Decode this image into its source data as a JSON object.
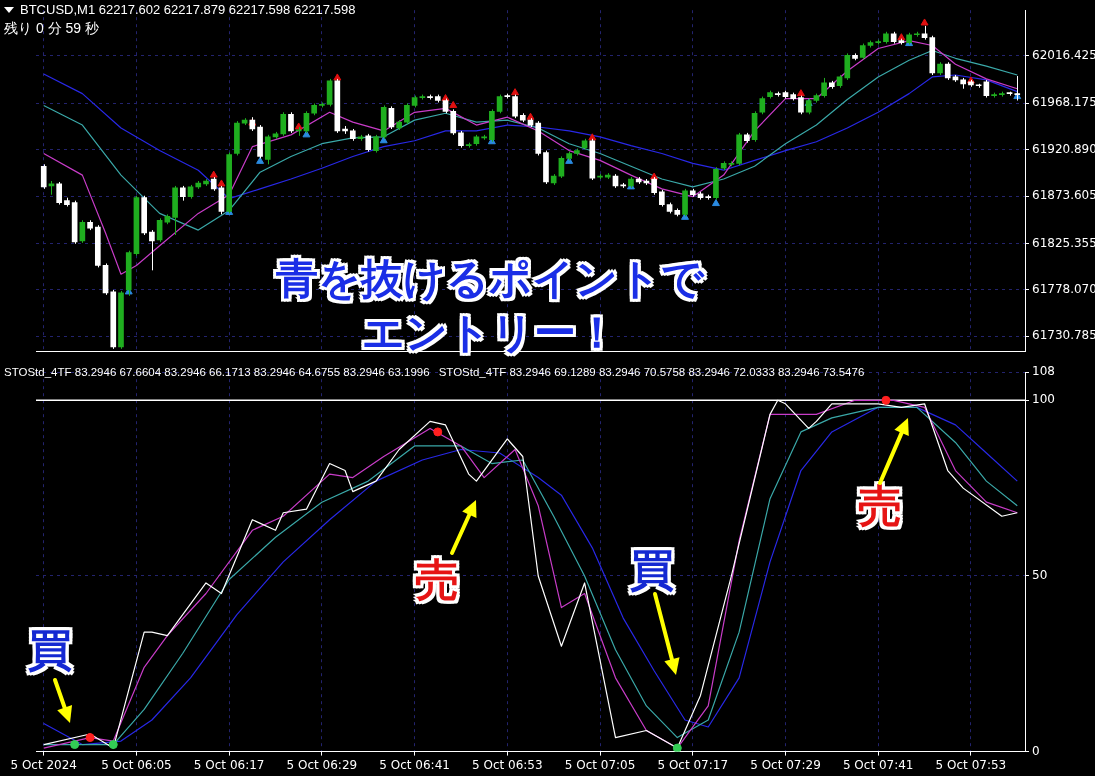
{
  "chart_data": [
    {
      "type": "candlestick",
      "title": "BTCUSD,M1  62217.602 62217.879 62217.598 62217.598",
      "subtitle": "残り 0 分 59 秒",
      "x": [
        "2024-10-05T05:53",
        "2024-10-05T05:54",
        "2024-10-05T05:55",
        "2024-10-05T05:56",
        "2024-10-05T05:57",
        "2024-10-05T05:58",
        "2024-10-05T05:59",
        "2024-10-05T06:00",
        "2024-10-05T06:01",
        "2024-10-05T06:02",
        "2024-10-05T06:03",
        "2024-10-05T06:04",
        "2024-10-05T06:05",
        "2024-10-05T06:06",
        "2024-10-05T06:07",
        "2024-10-05T06:08",
        "2024-10-05T06:09",
        "2024-10-05T06:10",
        "2024-10-05T06:11",
        "2024-10-05T06:12",
        "2024-10-05T06:13",
        "2024-10-05T06:14",
        "2024-10-05T06:15",
        "2024-10-05T06:16",
        "2024-10-05T06:17",
        "2024-10-05T06:18",
        "2024-10-05T06:19",
        "2024-10-05T06:20",
        "2024-10-05T06:21",
        "2024-10-05T06:22",
        "2024-10-05T06:23",
        "2024-10-05T06:24",
        "2024-10-05T06:25",
        "2024-10-05T06:26",
        "2024-10-05T06:27",
        "2024-10-05T06:28",
        "2024-10-05T06:29",
        "2024-10-05T06:30",
        "2024-10-05T06:31",
        "2024-10-05T06:32",
        "2024-10-05T06:33",
        "2024-10-05T06:34",
        "2024-10-05T06:35",
        "2024-10-05T06:36",
        "2024-10-05T06:37",
        "2024-10-05T06:38",
        "2024-10-05T06:39",
        "2024-10-05T06:40",
        "2024-10-05T06:41",
        "2024-10-05T06:42",
        "2024-10-05T06:43",
        "2024-10-05T06:44",
        "2024-10-05T06:45",
        "2024-10-05T06:46",
        "2024-10-05T06:47",
        "2024-10-05T06:48",
        "2024-10-05T06:49",
        "2024-10-05T06:50",
        "2024-10-05T06:51",
        "2024-10-05T06:52",
        "2024-10-05T06:53",
        "2024-10-05T06:54",
        "2024-10-05T06:55",
        "2024-10-05T06:56",
        "2024-10-05T06:57",
        "2024-10-05T06:58",
        "2024-10-05T06:59",
        "2024-10-05T07:00",
        "2024-10-05T07:01",
        "2024-10-05T07:02",
        "2024-10-05T07:03",
        "2024-10-05T07:04",
        "2024-10-05T07:05",
        "2024-10-05T07:06",
        "2024-10-05T07:07",
        "2024-10-05T07:08",
        "2024-10-05T07:09",
        "2024-10-05T07:10",
        "2024-10-05T07:11",
        "2024-10-05T07:12",
        "2024-10-05T07:13",
        "2024-10-05T07:14",
        "2024-10-05T07:15",
        "2024-10-05T07:16",
        "2024-10-05T07:17",
        "2024-10-05T07:18",
        "2024-10-05T07:19",
        "2024-10-05T07:20",
        "2024-10-05T07:21",
        "2024-10-05T07:22",
        "2024-10-05T07:23",
        "2024-10-05T07:24",
        "2024-10-05T07:25",
        "2024-10-05T07:26",
        "2024-10-05T07:27",
        "2024-10-05T07:28",
        "2024-10-05T07:29",
        "2024-10-05T07:30",
        "2024-10-05T07:31",
        "2024-10-05T07:32",
        "2024-10-05T07:33",
        "2024-10-05T07:34",
        "2024-10-05T07:35",
        "2024-10-05T07:36",
        "2024-10-05T07:37",
        "2024-10-05T07:38",
        "2024-10-05T07:39",
        "2024-10-05T07:40",
        "2024-10-05T07:41",
        "2024-10-05T07:42",
        "2024-10-05T07:43",
        "2024-10-05T07:44",
        "2024-10-05T07:45",
        "2024-10-05T07:46",
        "2024-10-05T07:47",
        "2024-10-05T07:48",
        "2024-10-05T07:49",
        "2024-10-05T07:50",
        "2024-10-05T07:51",
        "2024-10-05T07:52",
        "2024-10-05T07:53",
        "2024-10-05T07:54",
        "2024-10-05T07:55",
        "2024-10-05T07:56",
        "2024-10-05T07:57",
        "2024-10-05T07:58",
        "2024-10-05T07:59"
      ],
      "ohlc": [
        [
          61904,
          61906,
          61881,
          61883
        ],
        [
          61884,
          61889,
          61875,
          61886
        ],
        [
          61886,
          61888,
          61865,
          61867
        ],
        [
          61869,
          61872,
          61863,
          61865
        ],
        [
          61867,
          61869,
          61825,
          61827
        ],
        [
          61828,
          61849,
          61826,
          61847
        ],
        [
          61847,
          61849,
          61839,
          61841
        ],
        [
          61842,
          61844,
          61801,
          61803
        ],
        [
          61803,
          61805,
          61773,
          61775
        ],
        [
          61776,
          61778,
          61718,
          61720
        ],
        [
          61720,
          61777,
          61718,
          61775
        ],
        [
          61778,
          61818,
          61772,
          61816
        ],
        [
          61815,
          61874,
          61813,
          61872
        ],
        [
          61872,
          61874,
          61834,
          61836
        ],
        [
          61837,
          61839,
          61798,
          61828
        ],
        [
          61829,
          61851,
          61827,
          61849
        ],
        [
          61847,
          61855,
          61845,
          61853
        ],
        [
          61852,
          61884,
          61834,
          61882
        ],
        [
          61882,
          61884,
          61869,
          61873
        ],
        [
          61873,
          61885,
          61871,
          61883
        ],
        [
          61883,
          61889,
          61881,
          61887
        ],
        [
          61886,
          61891,
          61884,
          61889
        ],
        [
          61891,
          61893,
          61879,
          61881
        ],
        [
          61882,
          61884,
          61855,
          61858
        ],
        [
          61858,
          61918,
          61856,
          61916
        ],
        [
          61917,
          61950,
          61915,
          61948
        ],
        [
          61948,
          61953,
          61946,
          61951
        ],
        [
          61951,
          61954,
          61940,
          61942
        ],
        [
          61944,
          61946,
          61912,
          61914
        ],
        [
          61911,
          61936,
          61906,
          61934
        ],
        [
          61934,
          61939,
          61932,
          61937
        ],
        [
          61937,
          61959,
          61935,
          61957
        ],
        [
          61957,
          61959,
          61938,
          61940
        ],
        [
          61940,
          61944,
          61935,
          61941
        ],
        [
          61940,
          61960,
          61938,
          61958
        ],
        [
          61958,
          61968,
          61956,
          61966
        ],
        [
          61966,
          61969,
          61964,
          61967
        ],
        [
          61967,
          61993,
          61965,
          61991
        ],
        [
          61991,
          61993,
          61938,
          61940
        ],
        [
          61942,
          61945,
          61937,
          61940
        ],
        [
          61940,
          61942,
          61930,
          61932
        ],
        [
          61932,
          61936,
          61930,
          61934
        ],
        [
          61935,
          61937,
          61919,
          61921
        ],
        [
          61920,
          61936,
          61918,
          61934
        ],
        [
          61934,
          61966,
          61932,
          61964
        ],
        [
          61963,
          61965,
          61942,
          61944
        ],
        [
          61943,
          61951,
          61941,
          61949
        ],
        [
          61949,
          61968,
          61947,
          61966
        ],
        [
          61966,
          61976,
          61964,
          61974
        ],
        [
          61974,
          61977,
          61972,
          61975
        ],
        [
          61975,
          61977,
          61972,
          61974
        ],
        [
          61975,
          61977,
          61969,
          61971
        ],
        [
          61971,
          61973,
          61958,
          61960
        ],
        [
          61960,
          61962,
          61936,
          61938
        ],
        [
          61938,
          61940,
          61923,
          61925
        ],
        [
          61925,
          61928,
          61923,
          61926
        ],
        [
          61927,
          61936,
          61925,
          61934
        ],
        [
          61933,
          61936,
          61931,
          61934
        ],
        [
          61931,
          61962,
          61929,
          61960
        ],
        [
          61960,
          61977,
          61958,
          61975
        ],
        [
          61976,
          61978,
          61973,
          61975
        ],
        [
          61975,
          61977,
          61953,
          61955
        ],
        [
          61956,
          61958,
          61949,
          61951
        ],
        [
          61951,
          61953,
          61944,
          61946
        ],
        [
          61948,
          61950,
          61915,
          61917
        ],
        [
          61918,
          61920,
          61886,
          61888
        ],
        [
          61887,
          61896,
          61885,
          61894
        ],
        [
          61894,
          61914,
          61892,
          61912
        ],
        [
          61912,
          61919,
          61910,
          61917
        ],
        [
          61917,
          61922,
          61915,
          61920
        ],
        [
          61923,
          61932,
          61921,
          61930
        ],
        [
          61930,
          61932,
          61890,
          61892
        ],
        [
          61893,
          61896,
          61891,
          61894
        ],
        [
          61893,
          61897,
          61891,
          61895
        ],
        [
          61894,
          61896,
          61882,
          61884
        ],
        [
          61885,
          61887,
          61882,
          61884
        ],
        [
          61884,
          61893,
          61882,
          61891
        ],
        [
          61891,
          61893,
          61886,
          61888
        ],
        [
          61889,
          61891,
          61885,
          61887
        ],
        [
          61891,
          61893,
          61875,
          61877
        ],
        [
          61878,
          61880,
          61863,
          61865
        ],
        [
          61865,
          61867,
          61856,
          61858
        ],
        [
          61859,
          61861,
          61853,
          61855
        ],
        [
          61855,
          61881,
          61853,
          61879
        ],
        [
          61879,
          61881,
          61873,
          61875
        ],
        [
          61876,
          61878,
          61870,
          61872
        ],
        [
          61873,
          61875,
          61870,
          61872
        ],
        [
          61872,
          61903,
          61870,
          61901
        ],
        [
          61902,
          61909,
          61900,
          61907
        ],
        [
          61906,
          61909,
          61904,
          61907
        ],
        [
          61907,
          61938,
          61905,
          61936
        ],
        [
          61936,
          61938,
          61928,
          61930
        ],
        [
          61931,
          61960,
          61929,
          61958
        ],
        [
          61959,
          61975,
          61957,
          61973
        ],
        [
          61975,
          61981,
          61973,
          61979
        ],
        [
          61978,
          61980,
          61975,
          61977
        ],
        [
          61979,
          61981,
          61973,
          61975
        ],
        [
          61977,
          61979,
          61971,
          61973
        ],
        [
          61974,
          61976,
          61957,
          61959
        ],
        [
          61959,
          61973,
          61957,
          61971
        ],
        [
          61971,
          61978,
          61969,
          61976
        ],
        [
          61976,
          61994,
          61974,
          61989
        ],
        [
          61989,
          61991,
          61983,
          61985
        ],
        [
          61986,
          61997,
          61984,
          61995
        ],
        [
          61994,
          62019,
          61992,
          62017
        ],
        [
          62017,
          62019,
          62012,
          62014
        ],
        [
          62015,
          62029,
          62013,
          62027
        ],
        [
          62027,
          62032,
          62025,
          62030
        ],
        [
          62030,
          62033,
          62028,
          62031
        ],
        [
          62031,
          62041,
          62029,
          62039
        ],
        [
          62039,
          62041,
          62029,
          62031
        ],
        [
          62032,
          62034,
          62028,
          62030
        ],
        [
          62030,
          62040,
          62028,
          62038
        ],
        [
          62038,
          62041,
          62036,
          62039
        ],
        [
          62039,
          62047,
          62033,
          62035
        ],
        [
          62035,
          62037,
          61997,
          61999
        ],
        [
          61999,
          62010,
          61997,
          62008
        ],
        [
          62008,
          62010,
          61992,
          61994
        ],
        [
          61995,
          61997,
          61990,
          61992
        ],
        [
          61992,
          61994,
          61983,
          61988
        ],
        [
          61990,
          61992,
          61985,
          61987
        ],
        [
          61986,
          61988,
          61984,
          61986
        ],
        [
          61990,
          61992,
          61974,
          61976
        ],
        [
          61976,
          61979,
          61974,
          61977
        ],
        [
          61977,
          61980,
          61975,
          61978
        ],
        [
          61978,
          61980,
          61976,
          61978
        ],
        [
          61978,
          61996,
          61971,
          61977
        ]
      ],
      "colors": [
        "#ffffff",
        "#1fae1f",
        "#ffffff",
        "#ffffff",
        "#ffffff",
        "#1fae1f",
        "#ffffff",
        "#ffffff",
        "#ffffff",
        "#ffffff",
        "#1fae1f",
        "#1fae1f",
        "#1fae1f",
        "#ffffff",
        "#ffffff",
        "#1fae1f",
        "#1fae1f",
        "#1fae1f",
        "#ffffff",
        "#1fae1f",
        "#1fae1f",
        "#1fae1f",
        "#ffffff",
        "#ffffff",
        "#1fae1f",
        "#1fae1f",
        "#1fae1f",
        "#ffffff",
        "#ffffff",
        "#1fae1f",
        "#1fae1f",
        "#1fae1f",
        "#ffffff",
        "#1fae1f",
        "#1fae1f",
        "#1fae1f",
        "#1fae1f",
        "#1fae1f",
        "#ffffff",
        "#ffffff",
        "#ffffff",
        "#1fae1f",
        "#ffffff",
        "#1fae1f",
        "#1fae1f",
        "#ffffff",
        "#1fae1f",
        "#1fae1f",
        "#1fae1f",
        "#1fae1f",
        "#ffffff",
        "#ffffff",
        "#ffffff",
        "#ffffff",
        "#ffffff",
        "#1fae1f",
        "#1fae1f",
        "#1fae1f",
        "#1fae1f",
        "#1fae1f",
        "#ffffff",
        "#ffffff",
        "#ffffff",
        "#ffffff",
        "#ffffff",
        "#ffffff",
        "#1fae1f",
        "#1fae1f",
        "#1fae1f",
        "#1fae1f",
        "#1fae1f",
        "#ffffff",
        "#1fae1f",
        "#1fae1f",
        "#ffffff",
        "#ffffff",
        "#1fae1f",
        "#ffffff",
        "#ffffff",
        "#ffffff",
        "#ffffff",
        "#ffffff",
        "#ffffff",
        "#1fae1f",
        "#ffffff",
        "#ffffff",
        "#ffffff",
        "#1fae1f",
        "#1fae1f",
        "#1fae1f",
        "#1fae1f",
        "#ffffff",
        "#1fae1f",
        "#1fae1f",
        "#1fae1f",
        "#ffffff",
        "#ffffff",
        "#ffffff",
        "#ffffff",
        "#1fae1f",
        "#1fae1f",
        "#1fae1f",
        "#ffffff",
        "#1fae1f",
        "#1fae1f",
        "#ffffff",
        "#1fae1f",
        "#1fae1f",
        "#1fae1f",
        "#1fae1f",
        "#ffffff",
        "#ffffff",
        "#1fae1f",
        "#1fae1f",
        "#ffffff",
        "#ffffff",
        "#1fae1f",
        "#ffffff",
        "#ffffff",
        "#ffffff",
        "#ffffff",
        "#ffffff",
        "#ffffff",
        "#1fae1f",
        "#1fae1f",
        "#ffffff",
        "#ffffff"
      ],
      "series": [
        {
          "type": "line",
          "color": "#c83cc8",
          "x": [
            "2024-10-05T05:53",
            "2024-10-05T05:58",
            "2024-10-05T06:01",
            "2024-10-05T06:03",
            "2024-10-05T06:05",
            "2024-10-05T06:08",
            "2024-10-05T06:13",
            "2024-10-05T06:17",
            "2024-10-05T06:20",
            "2024-10-05T06:25",
            "2024-10-05T06:30",
            "2024-10-05T06:33",
            "2024-10-05T06:37",
            "2024-10-05T06:41",
            "2024-10-05T06:45",
            "2024-10-05T06:49",
            "2024-10-05T06:53",
            "2024-10-05T06:57",
            "2024-10-05T07:01",
            "2024-10-05T07:05",
            "2024-10-05T07:09",
            "2024-10-05T07:13",
            "2024-10-05T07:17",
            "2024-10-05T07:21",
            "2024-10-05T07:25",
            "2024-10-05T07:29",
            "2024-10-05T07:33",
            "2024-10-05T07:37",
            "2024-10-05T07:41",
            "2024-10-05T07:45",
            "2024-10-05T07:48",
            "2024-10-05T07:51",
            "2024-10-05T07:55",
            "2024-10-05T07:59"
          ],
          "values": [
            61917,
            61895,
            61836,
            61794,
            61803,
            61823,
            61856,
            61875,
            61924,
            61936,
            61959,
            61949,
            61940,
            61959,
            61963,
            61946,
            61954,
            61940,
            61920,
            61910,
            61895,
            61881,
            61873,
            61895,
            61940,
            61973,
            61973,
            62001,
            62024,
            62032,
            62027,
            62008,
            61993,
            61983
          ]
        },
        {
          "type": "line",
          "color": "#3aa8a8",
          "x": [
            "2024-10-05T05:53",
            "2024-10-05T05:58",
            "2024-10-05T06:03",
            "2024-10-05T06:08",
            "2024-10-05T06:13",
            "2024-10-05T06:17",
            "2024-10-05T06:21",
            "2024-10-05T06:25",
            "2024-10-05T06:29",
            "2024-10-05T06:33",
            "2024-10-05T06:37",
            "2024-10-05T06:41",
            "2024-10-05T06:45",
            "2024-10-05T06:49",
            "2024-10-05T06:53",
            "2024-10-05T06:57",
            "2024-10-05T07:01",
            "2024-10-05T07:05",
            "2024-10-05T07:09",
            "2024-10-05T07:13",
            "2024-10-05T07:17",
            "2024-10-05T07:21",
            "2024-10-05T07:25",
            "2024-10-05T07:29",
            "2024-10-05T07:33",
            "2024-10-05T07:37",
            "2024-10-05T07:41",
            "2024-10-05T07:45",
            "2024-10-05T07:48",
            "2024-10-05T07:51",
            "2024-10-05T07:55",
            "2024-10-05T07:59"
          ],
          "values": [
            61966,
            61946,
            61895,
            61856,
            61839,
            61859,
            61898,
            61914,
            61927,
            61933,
            61934,
            61951,
            61958,
            61949,
            61951,
            61943,
            61927,
            61917,
            61904,
            61891,
            61883,
            61891,
            61904,
            61927,
            61946,
            61972,
            61995,
            62012,
            62022,
            62014,
            62006,
            61997
          ]
        },
        {
          "type": "line",
          "color": "#2828e6",
          "x": [
            "2024-10-05T05:53",
            "2024-10-05T05:58",
            "2024-10-05T06:03",
            "2024-10-05T06:08",
            "2024-10-05T06:13",
            "2024-10-05T06:17",
            "2024-10-05T06:21",
            "2024-10-05T06:25",
            "2024-10-05T06:29",
            "2024-10-05T06:33",
            "2024-10-05T06:37",
            "2024-10-05T06:41",
            "2024-10-05T06:45",
            "2024-10-05T06:49",
            "2024-10-05T06:53",
            "2024-10-05T06:57",
            "2024-10-05T07:01",
            "2024-10-05T07:05",
            "2024-10-05T07:09",
            "2024-10-05T07:13",
            "2024-10-05T07:17",
            "2024-10-05T07:21",
            "2024-10-05T07:25",
            "2024-10-05T07:29",
            "2024-10-05T07:33",
            "2024-10-05T07:37",
            "2024-10-05T07:41",
            "2024-10-05T07:45",
            "2024-10-05T07:48",
            "2024-10-05T07:51",
            "2024-10-05T07:55",
            "2024-10-05T07:59"
          ],
          "values": [
            61998,
            61978,
            61943,
            61920,
            61900,
            61871,
            61881,
            61891,
            61902,
            61914,
            61924,
            61930,
            61940,
            61940,
            61946,
            61944,
            61940,
            61934,
            61925,
            61917,
            61907,
            61900,
            61910,
            61920,
            61929,
            61943,
            61959,
            61978,
            61995,
            61997,
            61992,
            61980
          ]
        },
        {
          "type": "scatter",
          "color": "#e01010",
          "marker": "triangle",
          "x": [
            "2024-10-05T06:15",
            "2024-10-05T06:16",
            "2024-10-05T06:20",
            "2024-10-05T06:26",
            "2024-10-05T06:31",
            "2024-10-05T06:45",
            "2024-10-05T06:46",
            "2024-10-05T06:54",
            "2024-10-05T06:56",
            "2024-10-05T07:04",
            "2024-10-05T07:12",
            "2024-10-05T07:31",
            "2024-10-05T07:44",
            "2024-10-05T07:47",
            "2024-10-05T07:53"
          ],
          "values": [
            61895,
            61886,
            61948,
            61944,
            61994,
            61973,
            61966,
            61979,
            61954,
            61933,
            61893,
            61978,
            62035,
            62050,
            61991
          ]
        },
        {
          "type": "scatter",
          "color": "#2a8ae0",
          "marker": "triangle",
          "x": [
            "2024-10-05T06:04",
            "2024-10-05T06:17",
            "2024-10-05T06:21",
            "2024-10-05T06:27",
            "2024-10-05T06:37",
            "2024-10-05T06:51",
            "2024-10-05T07:01",
            "2024-10-05T07:09",
            "2024-10-05T07:16",
            "2024-10-05T07:20",
            "2024-10-05T07:32",
            "2024-10-05T07:45",
            "2024-10-05T07:59"
          ],
          "values": [
            61776,
            61857,
            61909,
            61936,
            61930,
            61929,
            61909,
            61883,
            61852,
            61866,
            61968,
            62029,
            61975
          ]
        }
      ],
      "xlim": [
        "2024-10-05T05:52",
        "2024-10-05T08:00"
      ],
      "xticks": [
        {
          "value": "2024-10-05T05:53",
          "label": null
        },
        {
          "value": "2024-10-05T06:05",
          "label": null
        },
        {
          "value": "2024-10-05T06:17",
          "label": null
        },
        {
          "value": "2024-10-05T06:29",
          "label": null
        },
        {
          "value": "2024-10-05T06:41",
          "label": null
        },
        {
          "value": "2024-10-05T06:53",
          "label": null
        },
        {
          "value": "2024-10-05T07:05",
          "label": null
        },
        {
          "value": "2024-10-05T07:17",
          "label": null
        },
        {
          "value": "2024-10-05T07:29",
          "label": null
        },
        {
          "value": "2024-10-05T07:41",
          "label": null
        },
        {
          "value": "2024-10-05T07:53",
          "label": null
        }
      ],
      "ylim": [
        61715,
        62063
      ],
      "yticks": [
        61730.785,
        {
          "value": 61778.07,
          "label": "61778.070"
        },
        61825.355,
        61873.605,
        {
          "value": 61920.89,
          "label": "61920.890"
        },
        61968.175,
        62016.425
      ],
      "tick_labels": "y",
      "grid": true,
      "annotations": [
        "青を抜けるポイントで",
        "エントリー！"
      ]
    },
    {
      "type": "line",
      "series": [
        {
          "color": "#ffffff",
          "x": [
            "2024-10-05T05:53",
            "2024-10-05T05:59",
            "2024-10-05T06:02",
            "2024-10-05T06:06",
            "2024-10-05T06:07",
            "2024-10-05T06:09",
            "2024-10-05T06:14",
            "2024-10-05T06:16",
            "2024-10-05T06:20",
            "2024-10-05T06:23",
            "2024-10-05T06:24",
            "2024-10-05T06:27",
            "2024-10-05T06:30",
            "2024-10-05T06:32",
            "2024-10-05T06:33",
            "2024-10-05T06:36",
            "2024-10-05T06:39",
            "2024-10-05T06:43",
            "2024-10-05T06:45",
            "2024-10-05T06:48",
            "2024-10-05T06:49",
            "2024-10-05T06:53",
            "2024-10-05T06:55",
            "2024-10-05T06:57",
            "2024-10-05T07:00",
            "2024-10-05T07:03",
            "2024-10-05T07:07",
            "2024-10-05T07:11",
            "2024-10-05T07:15",
            "2024-10-05T07:18",
            "2024-10-05T07:22",
            "2024-10-05T07:27",
            "2024-10-05T07:28",
            "2024-10-05T07:29",
            "2024-10-05T07:32",
            "2024-10-05T07:33",
            "2024-10-05T07:35",
            "2024-10-05T07:41",
            "2024-10-05T07:44",
            "2024-10-05T07:47",
            "2024-10-05T07:50",
            "2024-10-05T07:52",
            "2024-10-05T07:57",
            "2024-10-05T07:59"
          ],
          "values": [
            2,
            5,
            1,
            34,
            34,
            33,
            48,
            45,
            66,
            63,
            68,
            69,
            82,
            80,
            74,
            77,
            86,
            94,
            93,
            79,
            77,
            89,
            84,
            50,
            30,
            48,
            4,
            6,
            1,
            16,
            50,
            96,
            100,
            99,
            92,
            94,
            99,
            99,
            98,
            99,
            80,
            75,
            67,
            68
          ]
        },
        {
          "color": "#c83cc8",
          "x": [
            "2024-10-05T05:53",
            "2024-10-05T05:59",
            "2024-10-05T06:02",
            "2024-10-05T06:06",
            "2024-10-05T06:09",
            "2024-10-05T06:14",
            "2024-10-05T06:20",
            "2024-10-05T06:24",
            "2024-10-05T06:30",
            "2024-10-05T06:33",
            "2024-10-05T06:37",
            "2024-10-05T06:43",
            "2024-10-05T06:47",
            "2024-10-05T06:50",
            "2024-10-05T06:54",
            "2024-10-05T06:57",
            "2024-10-05T07:00",
            "2024-10-05T07:03",
            "2024-10-05T07:07",
            "2024-10-05T07:11",
            "2024-10-05T07:15",
            "2024-10-05T07:19",
            "2024-10-05T07:23",
            "2024-10-05T07:27",
            "2024-10-05T07:30",
            "2024-10-05T07:33",
            "2024-10-05T07:38",
            "2024-10-05T07:43",
            "2024-10-05T07:47",
            "2024-10-05T07:51",
            "2024-10-05T07:55",
            "2024-10-05T07:59"
          ],
          "values": [
            1,
            4,
            3,
            24,
            33,
            45,
            63,
            67,
            79,
            78,
            84,
            92,
            87,
            78,
            86,
            70,
            41,
            45,
            21,
            6,
            1,
            13,
            60,
            96,
            96,
            96,
            100,
            100,
            98,
            80,
            71,
            68
          ]
        },
        {
          "color": "#3aa8a8",
          "x": [
            "2024-10-05T05:53",
            "2024-10-05T06:02",
            "2024-10-05T06:06",
            "2024-10-05T06:11",
            "2024-10-05T06:17",
            "2024-10-05T06:23",
            "2024-10-05T06:29",
            "2024-10-05T06:35",
            "2024-10-05T06:41",
            "2024-10-05T06:47",
            "2024-10-05T06:51",
            "2024-10-05T06:55",
            "2024-10-05T06:59",
            "2024-10-05T07:03",
            "2024-10-05T07:07",
            "2024-10-05T07:11",
            "2024-10-05T07:15",
            "2024-10-05T07:19",
            "2024-10-05T07:23",
            "2024-10-05T07:27",
            "2024-10-05T07:31",
            "2024-10-05T07:35",
            "2024-10-05T07:41",
            "2024-10-05T07:46",
            "2024-10-05T07:51",
            "2024-10-05T07:55",
            "2024-10-05T07:59"
          ],
          "values": [
            2,
            2,
            12,
            28,
            49,
            61,
            71,
            77,
            87,
            87,
            82,
            83,
            67,
            50,
            29,
            13,
            4,
            9,
            34,
            72,
            91,
            95,
            98,
            98,
            88,
            77,
            70
          ]
        },
        {
          "color": "#2828e6",
          "x": [
            "2024-10-05T05:53",
            "2024-10-05T05:58",
            "2024-10-05T06:03",
            "2024-10-05T06:07",
            "2024-10-05T06:12",
            "2024-10-05T06:18",
            "2024-10-05T06:24",
            "2024-10-05T06:30",
            "2024-10-05T06:36",
            "2024-10-05T06:42",
            "2024-10-05T06:47",
            "2024-10-05T06:52",
            "2024-10-05T06:57",
            "2024-10-05T07:00",
            "2024-10-05T07:04",
            "2024-10-05T07:08",
            "2024-10-05T07:12",
            "2024-10-05T07:16",
            "2024-10-05T07:19",
            "2024-10-05T07:23",
            "2024-10-05T07:27",
            "2024-10-05T07:31",
            "2024-10-05T07:35",
            "2024-10-05T07:41",
            "2024-10-05T07:46",
            "2024-10-05T07:51",
            "2024-10-05T07:55",
            "2024-10-05T07:59"
          ],
          "values": [
            8,
            2,
            3,
            9,
            21,
            39,
            54,
            66,
            77,
            83,
            86,
            85,
            78,
            73,
            58,
            38,
            23,
            9,
            7,
            21,
            54,
            80,
            91,
            98,
            98,
            93,
            85,
            77
          ]
        },
        {
          "type": "scatter",
          "color": "#33cc55",
          "marker": "circle",
          "x": [
            "2024-10-05T05:57",
            "2024-10-05T06:02",
            "2024-10-05T07:15"
          ],
          "values": [
            2,
            2,
            1
          ]
        },
        {
          "type": "scatter",
          "color": "#ff2020",
          "marker": "circle",
          "x": [
            "2024-10-05T05:59",
            "2024-10-05T06:44",
            "2024-10-05T07:42"
          ],
          "values": [
            4,
            91,
            100
          ]
        }
      ],
      "xlim": [
        "2024-10-05T05:52",
        "2024-10-05T08:00"
      ],
      "xticks": [
        {
          "value": "2024-10-05T05:53",
          "label": "5 Oct 2024"
        },
        {
          "value": "2024-10-05T06:05",
          "label": "5 Oct 06:05"
        },
        {
          "value": "2024-10-05T06:17",
          "label": "5 Oct 06:17"
        },
        {
          "value": "2024-10-05T06:29",
          "label": "5 Oct 06:29"
        },
        {
          "value": "2024-10-05T06:41",
          "label": "5 Oct 06:41"
        },
        {
          "value": "2024-10-05T06:53",
          "label": "5 Oct 06:53"
        },
        {
          "value": "2024-10-05T07:05",
          "label": "5 Oct 07:05"
        },
        {
          "value": "2024-10-05T07:17",
          "label": "5 Oct 07:17"
        },
        {
          "value": "2024-10-05T07:29",
          "label": "5 Oct 07:29"
        },
        {
          "value": "2024-10-05T07:41",
          "label": "5 Oct 07:41"
        },
        {
          "value": "2024-10-05T07:53",
          "label": "5 Oct 07:53"
        }
      ],
      "ylim": [
        0,
        108
      ],
      "yticks": [
        0,
        50,
        100,
        108
      ],
      "grid": true,
      "ref_lines": [
        {
          "axis": "y",
          "value": 100,
          "color": "#ffffff"
        }
      ],
      "annotations": [
        "STOStd_4TF 83.2946 67.6604 83.2946 66.1713 83.2946 64.6755 83.2946 63.1996",
        "STOStd_4TF 83.2946 69.1289 83.2946 70.5758 83.2946 72.0333 83.2946 73.5476",
        "買",
        "売",
        "買",
        "売"
      ]
    }
  ]
}
